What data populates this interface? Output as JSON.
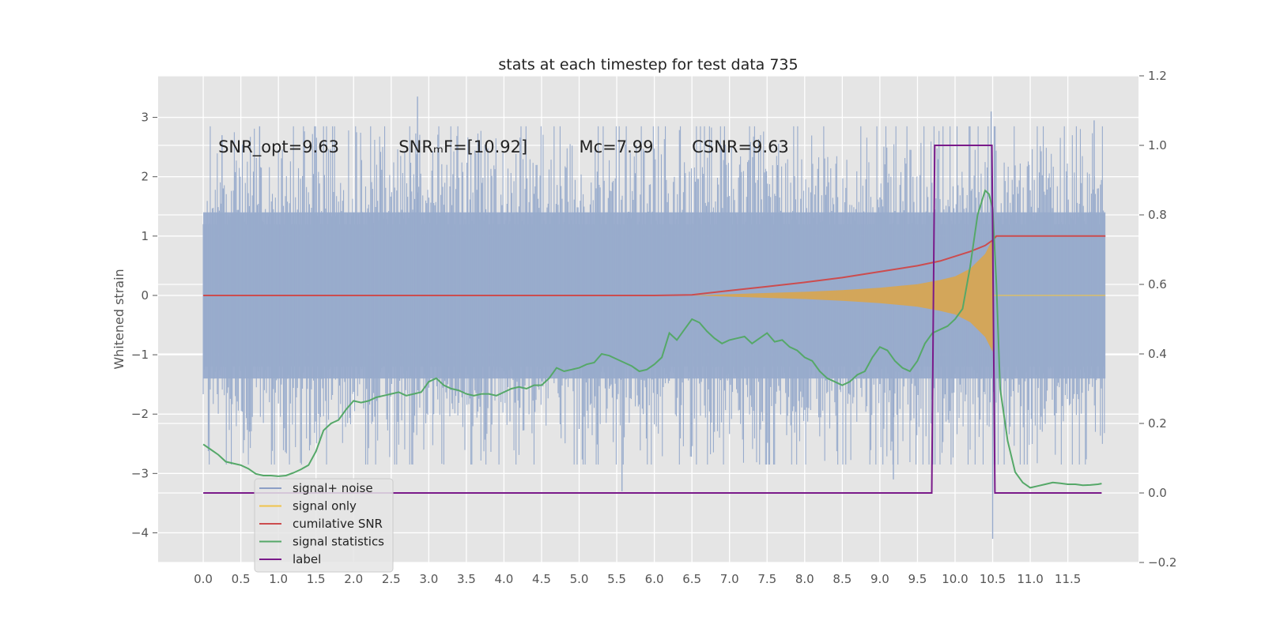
{
  "chart_data": {
    "type": "line",
    "title": "stats at each timestep for test data 735",
    "xlabel": "",
    "ylabel": "Whitened strain",
    "y2label": "",
    "xlim": [
      -0.6,
      12.44
    ],
    "ylim": [
      -4.5,
      3.7
    ],
    "y2lim": [
      -0.2,
      1.2
    ],
    "grid": true,
    "x_ticks": [
      0.0,
      0.5,
      1.0,
      1.5,
      2.0,
      2.5,
      3.0,
      3.5,
      4.0,
      4.5,
      5.0,
      5.5,
      6.0,
      6.5,
      7.0,
      7.5,
      8.0,
      8.5,
      9.0,
      9.5,
      10.0,
      10.5,
      11.0,
      11.5
    ],
    "x_tick_labels": [
      "0.0",
      "0.5",
      "1.0",
      "1.5",
      "2.0",
      "2.5",
      "3.0",
      "3.5",
      "4.0",
      "4.5",
      "5.0",
      "5.5",
      "6.0",
      "6.5",
      "7.0",
      "7.5",
      "8.0",
      "8.5",
      "9.0",
      "9.5",
      "10.0",
      "10.5",
      "11.0",
      "11.5"
    ],
    "y_ticks": [
      3,
      2,
      1,
      0,
      -1,
      -2,
      -3,
      -4
    ],
    "y_tick_labels": [
      "3",
      "2",
      "1",
      "0",
      "−1",
      "−2",
      "−3",
      "−4"
    ],
    "y2_ticks": [
      1.2,
      1.0,
      0.8,
      0.6,
      0.4,
      0.2,
      0.0,
      -0.2
    ],
    "y2_tick_labels": [
      "1.2",
      "1.0",
      "0.8",
      "0.6",
      "0.4",
      "0.2",
      "0.0",
      "−0.2"
    ],
    "annotations": [
      {
        "text": "SNR_opt=9.63",
        "x": 0.2,
        "y": 2.5
      },
      {
        "text": "SNRₘF=[10.92]",
        "x": 2.6,
        "y": 2.5
      },
      {
        "text": "Mᴄ=7.99",
        "x": 5.0,
        "y": 2.5
      },
      {
        "text": "CSNR=9.63",
        "x": 6.5,
        "y": 2.5
      }
    ],
    "legend_position": "lower-left",
    "legend": [
      {
        "label": "signal+ noise",
        "color": "#8c9fc6"
      },
      {
        "label": "signal only",
        "color": "#f0c44a"
      },
      {
        "label": "cumilative SNR",
        "color": "#cc4c4e"
      },
      {
        "label": "signal statistics",
        "color": "#55a868"
      },
      {
        "label": "label",
        "color": "#7a1a8a"
      }
    ],
    "series": [
      {
        "name": "signal+ noise",
        "axis": "left",
        "style": "noise-band",
        "color": "#98abcc",
        "x_range": [
          0.0,
          12.0
        ],
        "typical_band": [
          -1.4,
          1.4
        ],
        "peaks": [
          [
            0.25,
            2.7
          ],
          [
            2.85,
            3.35
          ],
          [
            10.48,
            3.1
          ],
          [
            10.5,
            -4.1
          ],
          [
            5.57,
            -3.3
          ],
          [
            9.18,
            -3.1
          ],
          [
            11.85,
            2.95
          ],
          [
            0.75,
            2.85
          ]
        ]
      },
      {
        "name": "signal only",
        "axis": "left",
        "style": "chirp-envelope",
        "color": "#d9a54e",
        "x": [
          6.5,
          7.0,
          7.5,
          8.0,
          8.5,
          9.0,
          9.5,
          9.8,
          10.0,
          10.2,
          10.4,
          10.5,
          10.52
        ],
        "amplitude": [
          0.0,
          0.02,
          0.04,
          0.06,
          0.09,
          0.13,
          0.19,
          0.26,
          0.32,
          0.45,
          0.7,
          0.95,
          0.0
        ]
      },
      {
        "name": "cumilative SNR",
        "axis": "left",
        "color": "#cc4c4e",
        "x": [
          0.0,
          6.0,
          6.5,
          7.0,
          7.5,
          8.0,
          8.5,
          9.0,
          9.5,
          9.8,
          10.0,
          10.2,
          10.4,
          10.5,
          10.55,
          12.0
        ],
        "values": [
          0.0,
          0.0,
          0.01,
          0.08,
          0.15,
          0.22,
          0.3,
          0.4,
          0.5,
          0.58,
          0.66,
          0.74,
          0.84,
          0.93,
          1.0,
          1.0
        ]
      },
      {
        "name": "signal statistics",
        "axis": "right",
        "color": "#55a868",
        "x": [
          0.0,
          0.1,
          0.2,
          0.3,
          0.4,
          0.5,
          0.6,
          0.7,
          0.8,
          0.9,
          1.0,
          1.1,
          1.2,
          1.3,
          1.4,
          1.5,
          1.6,
          1.7,
          1.8,
          1.9,
          2.0,
          2.1,
          2.2,
          2.3,
          2.4,
          2.5,
          2.6,
          2.7,
          2.8,
          2.9,
          3.0,
          3.1,
          3.2,
          3.3,
          3.4,
          3.5,
          3.6,
          3.7,
          3.8,
          3.9,
          4.0,
          4.1,
          4.2,
          4.3,
          4.4,
          4.5,
          4.6,
          4.7,
          4.8,
          4.9,
          5.0,
          5.1,
          5.2,
          5.3,
          5.4,
          5.5,
          5.6,
          5.7,
          5.8,
          5.9,
          6.0,
          6.1,
          6.2,
          6.3,
          6.4,
          6.5,
          6.6,
          6.7,
          6.8,
          6.9,
          7.0,
          7.1,
          7.2,
          7.3,
          7.4,
          7.5,
          7.6,
          7.7,
          7.8,
          7.9,
          8.0,
          8.1,
          8.2,
          8.3,
          8.4,
          8.5,
          8.6,
          8.7,
          8.8,
          8.9,
          9.0,
          9.1,
          9.2,
          9.3,
          9.4,
          9.5,
          9.6,
          9.7,
          9.8,
          9.9,
          10.0,
          10.1,
          10.2,
          10.3,
          10.4,
          10.45,
          10.5,
          10.55,
          10.6,
          10.7,
          10.8,
          10.9,
          11.0,
          11.1,
          11.2,
          11.3,
          11.4,
          11.5,
          11.6,
          11.7,
          11.8,
          11.9,
          11.95
        ],
        "values": [
          0.14,
          0.125,
          0.11,
          0.09,
          0.085,
          0.08,
          0.07,
          0.055,
          0.05,
          0.05,
          0.048,
          0.05,
          0.058,
          0.068,
          0.08,
          0.12,
          0.18,
          0.2,
          0.21,
          0.24,
          0.265,
          0.26,
          0.265,
          0.275,
          0.28,
          0.285,
          0.29,
          0.28,
          0.285,
          0.29,
          0.32,
          0.33,
          0.31,
          0.3,
          0.295,
          0.285,
          0.28,
          0.285,
          0.285,
          0.28,
          0.29,
          0.3,
          0.305,
          0.3,
          0.31,
          0.31,
          0.33,
          0.36,
          0.35,
          0.355,
          0.36,
          0.37,
          0.375,
          0.4,
          0.395,
          0.385,
          0.375,
          0.365,
          0.35,
          0.355,
          0.37,
          0.39,
          0.46,
          0.44,
          0.47,
          0.5,
          0.49,
          0.465,
          0.445,
          0.43,
          0.44,
          0.445,
          0.45,
          0.43,
          0.445,
          0.46,
          0.435,
          0.44,
          0.42,
          0.41,
          0.39,
          0.38,
          0.35,
          0.33,
          0.32,
          0.31,
          0.32,
          0.34,
          0.35,
          0.39,
          0.42,
          0.41,
          0.38,
          0.36,
          0.35,
          0.38,
          0.43,
          0.46,
          0.47,
          0.48,
          0.5,
          0.53,
          0.65,
          0.8,
          0.87,
          0.86,
          0.82,
          0.6,
          0.3,
          0.15,
          0.06,
          0.03,
          0.015,
          0.02,
          0.025,
          0.03,
          0.028,
          0.025,
          0.025,
          0.022,
          0.023,
          0.025,
          0.027
        ]
      },
      {
        "name": "label",
        "axis": "right",
        "color": "#7a1a8a",
        "x": [
          0.0,
          9.69,
          9.73,
          10.49,
          10.53,
          11.95
        ],
        "values": [
          0.0,
          0.0,
          1.0,
          1.0,
          0.0,
          0.0
        ]
      }
    ]
  }
}
